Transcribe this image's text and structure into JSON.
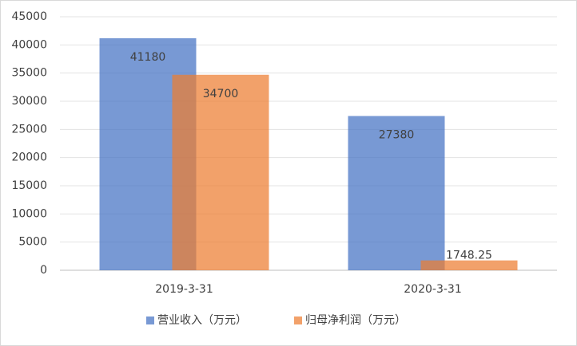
{
  "chart_data": {
    "type": "bar",
    "categories": [
      "2019-3-31",
      "2020-3-31"
    ],
    "series": [
      {
        "name": "营业收入（万元）",
        "color": "#4472c4",
        "values": [
          41180,
          27380
        ]
      },
      {
        "name": "归母净利润（万元）",
        "color": "#ed7d31",
        "values": [
          34700,
          1748.25
        ]
      }
    ],
    "ylim": [
      0,
      45000
    ],
    "yticks": [
      0,
      5000,
      10000,
      15000,
      20000,
      25000,
      30000,
      35000,
      40000,
      45000
    ],
    "grid": true,
    "legend": "bottom"
  }
}
